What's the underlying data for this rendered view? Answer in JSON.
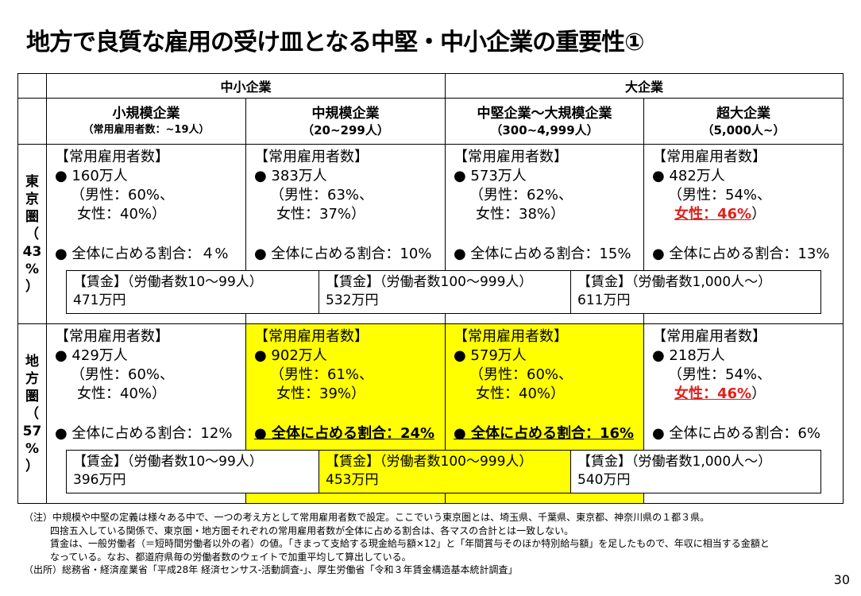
{
  "title": "地方で良質な雇用の受け皿となる中堅・中小企業の重要性①",
  "bands": {
    "sme": "中小企業",
    "large": "大企業"
  },
  "columns": [
    {
      "l1": "小規模企業",
      "l2": "（常用雇用者数：~19人）"
    },
    {
      "l1": "中規模企業",
      "l2": "（20~299人）"
    },
    {
      "l1": "中堅企業～大規模企業",
      "l2": "（300~4,999人）"
    },
    {
      "l1": "超大企業",
      "l2": "（5,000人~）"
    }
  ],
  "regions": {
    "tokyo": {
      "chars": [
        "東",
        "京",
        "圏",
        "（",
        "43",
        "%",
        "）"
      ]
    },
    "local": {
      "chars": [
        "地",
        "方",
        "圏",
        "（",
        "57",
        "%",
        "）"
      ]
    }
  },
  "labels": {
    "employees": "【常用雇用者数】",
    "wage_small": "【賃金】（労働者数10～99人）",
    "wage_mid": "【賃金】（労働者数100～999人）",
    "wage_large": "【賃金】（労働者数1,000人～）"
  },
  "tokyo": {
    "cells": [
      {
        "count": "● 160万人",
        "male": "（男性：60%、",
        "female": "女性：40%）",
        "share": "● 全体に占める割合：４%"
      },
      {
        "count": "● 383万人",
        "male": "（男性：63%、",
        "female": "女性：37%）",
        "share": "● 全体に占める割合：10%"
      },
      {
        "count": "● 573万人",
        "male": "（男性：62%、",
        "female": "女性：38%）",
        "share": "● 全体に占める割合：15%"
      },
      {
        "count": "● 482万人",
        "male": "（男性：54%、",
        "female": "女性：46%",
        "female_close": "）",
        "share": "● 全体に占める割合：13%"
      }
    ],
    "wages": [
      "471万円",
      "532万円",
      "611万円"
    ]
  },
  "local": {
    "cells": [
      {
        "count": "● 429万人",
        "male": "（男性：60%、",
        "female": "女性：40%）",
        "share": "● 全体に占める割合：12%"
      },
      {
        "count": "● 902万人",
        "male": "（男性：61%、",
        "female": "女性：39%）",
        "share": "● 全体に占める割合：24%"
      },
      {
        "count": "● 579万人",
        "male": "（男性：60%、",
        "female": "女性：40%）",
        "share": "● 全体に占める割合：16%"
      },
      {
        "count": "● 218万人",
        "male": "（男性：54%、",
        "female": "女性：46%",
        "female_close": "）",
        "share": "● 全体に占める割合：6%"
      }
    ],
    "wages": [
      "396万円",
      "453万円",
      "540万円"
    ]
  },
  "notes": [
    "（注）中規模や中堅の定義は様々ある中で、一つの考え方として常用雇用者数で設定。ここでいう東京圏とは、埼玉県、千葉県、東京都、神奈川県の１都３県。",
    "四捨五入している関係で、東京圏・地方圏それぞれの常用雇用者数が全体に占める割合は、各マスの合計とは一致しない。",
    "賃金は、一般労働者（＝短時間労働者以外の者）の値。「きまって支給する現金給与額×12」と「年間賞与そのほか特別給与額」を足したもので、年収に相当する金額と",
    "なっている。なお、都道府県毎の労働者数のウェイトで加重平均して算出している。",
    "（出所）総務省・経済産業省「平成28年 経済センサス-活動調査-」、厚生労働省「令和３年賃金構造基本統計調査」"
  ],
  "page_number": "30",
  "colors": {
    "highlight": "#ffff00",
    "accent_red": "#e0201b"
  }
}
